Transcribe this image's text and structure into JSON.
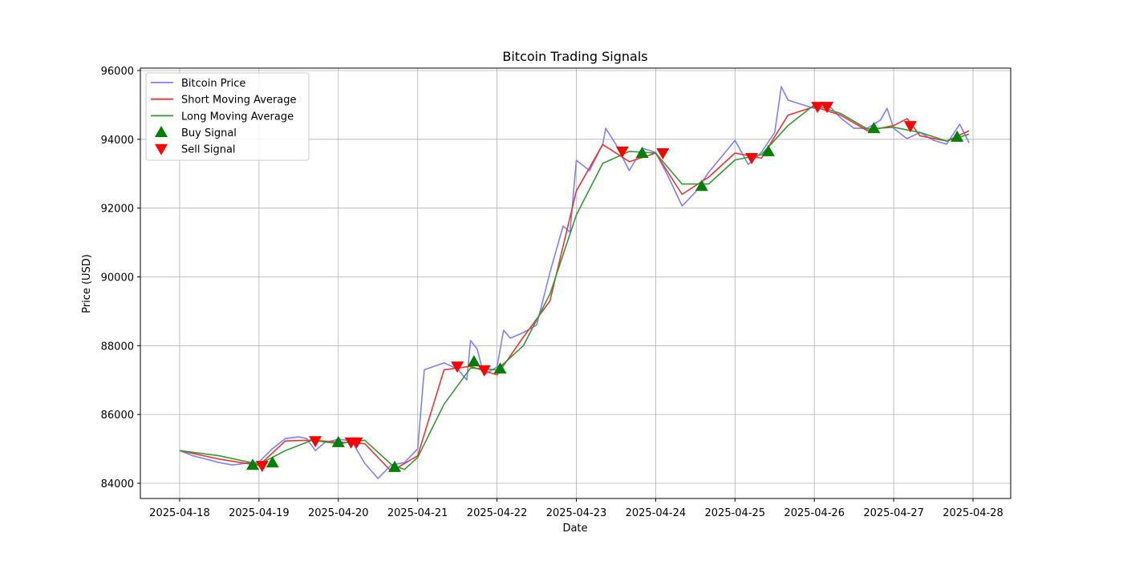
{
  "chart_data": {
    "type": "line",
    "title": "Bitcoin Trading Signals",
    "xlabel": "Date",
    "ylabel": "Price (USD)",
    "x_unit": "days since 2025-04-18",
    "xlim": [
      -0.495,
      10.475
    ],
    "ylim": [
      83557,
      96070
    ],
    "grid": true,
    "legend_position": "top-left",
    "x_ticks": [
      {
        "value": 0,
        "label": "2025-04-18"
      },
      {
        "value": 1,
        "label": "2025-04-19"
      },
      {
        "value": 2,
        "label": "2025-04-20"
      },
      {
        "value": 3,
        "label": "2025-04-21"
      },
      {
        "value": 4,
        "label": "2025-04-22"
      },
      {
        "value": 5,
        "label": "2025-04-23"
      },
      {
        "value": 6,
        "label": "2025-04-24"
      },
      {
        "value": 7,
        "label": "2025-04-25"
      },
      {
        "value": 8,
        "label": "2025-04-26"
      },
      {
        "value": 9,
        "label": "2025-04-27"
      },
      {
        "value": 10,
        "label": "2025-04-28"
      }
    ],
    "y_ticks": [
      {
        "value": 84000,
        "label": "84000"
      },
      {
        "value": 86000,
        "label": "86000"
      },
      {
        "value": 88000,
        "label": "88000"
      },
      {
        "value": 90000,
        "label": "90000"
      },
      {
        "value": 92000,
        "label": "92000"
      },
      {
        "value": 94000,
        "label": "94000"
      },
      {
        "value": 96000,
        "label": "96000"
      }
    ],
    "series": [
      {
        "name": "Bitcoin Price",
        "color": "#7f7fff",
        "points": [
          [
            0,
            84950
          ],
          [
            0.167,
            84800
          ],
          [
            0.333,
            84700
          ],
          [
            0.5,
            84600
          ],
          [
            0.667,
            84530
          ],
          [
            0.833,
            84580
          ],
          [
            1.0,
            84620
          ],
          [
            1.167,
            85000
          ],
          [
            1.333,
            85300
          ],
          [
            1.5,
            85350
          ],
          [
            1.6,
            85300
          ],
          [
            1.71,
            84950
          ],
          [
            1.833,
            85190
          ],
          [
            2.0,
            85280
          ],
          [
            2.167,
            85230
          ],
          [
            2.333,
            84580
          ],
          [
            2.5,
            84140
          ],
          [
            2.667,
            84530
          ],
          [
            2.833,
            84600
          ],
          [
            3.0,
            85000
          ],
          [
            3.083,
            87300
          ],
          [
            3.333,
            87500
          ],
          [
            3.5,
            87330
          ],
          [
            3.62,
            87000
          ],
          [
            3.667,
            88150
          ],
          [
            3.75,
            87900
          ],
          [
            3.833,
            87150
          ],
          [
            4.0,
            87380
          ],
          [
            4.083,
            88450
          ],
          [
            4.167,
            88220
          ],
          [
            4.333,
            88380
          ],
          [
            4.5,
            88600
          ],
          [
            4.667,
            90130
          ],
          [
            4.833,
            91480
          ],
          [
            4.92,
            91300
          ],
          [
            5.0,
            93390
          ],
          [
            5.167,
            93090
          ],
          [
            5.333,
            93860
          ],
          [
            5.37,
            94320
          ],
          [
            5.5,
            93850
          ],
          [
            5.667,
            93090
          ],
          [
            5.833,
            93740
          ],
          [
            6.0,
            93620
          ],
          [
            6.167,
            92880
          ],
          [
            6.333,
            92060
          ],
          [
            6.5,
            92460
          ],
          [
            6.667,
            93040
          ],
          [
            6.833,
            93500
          ],
          [
            7.0,
            93970
          ],
          [
            7.167,
            93270
          ],
          [
            7.333,
            93620
          ],
          [
            7.5,
            94200
          ],
          [
            7.583,
            95530
          ],
          [
            7.667,
            95140
          ],
          [
            7.833,
            95020
          ],
          [
            8.0,
            94900
          ],
          [
            8.167,
            95020
          ],
          [
            8.333,
            94620
          ],
          [
            8.5,
            94320
          ],
          [
            8.667,
            94320
          ],
          [
            8.833,
            94560
          ],
          [
            8.917,
            94900
          ],
          [
            9.0,
            94320
          ],
          [
            9.167,
            94020
          ],
          [
            9.333,
            94200
          ],
          [
            9.5,
            93970
          ],
          [
            9.667,
            93860
          ],
          [
            9.833,
            94440
          ],
          [
            9.95,
            93900
          ]
        ]
      },
      {
        "name": "Short Moving Average",
        "color": "#ee3333",
        "points": [
          [
            0,
            84950
          ],
          [
            0.5,
            84700
          ],
          [
            1.0,
            84520
          ],
          [
            1.333,
            85230
          ],
          [
            1.667,
            85250
          ],
          [
            2.0,
            85200
          ],
          [
            2.333,
            85150
          ],
          [
            2.667,
            84350
          ],
          [
            3.0,
            84800
          ],
          [
            3.333,
            87300
          ],
          [
            3.667,
            87400
          ],
          [
            4.0,
            87150
          ],
          [
            4.333,
            88250
          ],
          [
            4.667,
            89300
          ],
          [
            5.0,
            92500
          ],
          [
            5.333,
            93850
          ],
          [
            5.667,
            93350
          ],
          [
            6.0,
            93600
          ],
          [
            6.333,
            92400
          ],
          [
            6.667,
            92900
          ],
          [
            7.0,
            93600
          ],
          [
            7.333,
            93450
          ],
          [
            7.667,
            94700
          ],
          [
            8.0,
            94950
          ],
          [
            8.333,
            94700
          ],
          [
            8.667,
            94250
          ],
          [
            9.0,
            94400
          ],
          [
            9.17,
            94600
          ],
          [
            9.333,
            94100
          ],
          [
            9.667,
            93950
          ],
          [
            9.95,
            94250
          ]
        ]
      },
      {
        "name": "Long Moving Average",
        "color": "#339933",
        "points": [
          [
            0,
            84950
          ],
          [
            0.5,
            84800
          ],
          [
            1.0,
            84550
          ],
          [
            1.333,
            84950
          ],
          [
            1.667,
            85250
          ],
          [
            2.0,
            85150
          ],
          [
            2.333,
            85250
          ],
          [
            2.667,
            84550
          ],
          [
            2.833,
            84400
          ],
          [
            3.0,
            84750
          ],
          [
            3.333,
            86300
          ],
          [
            3.667,
            87350
          ],
          [
            4.0,
            87300
          ],
          [
            4.333,
            88000
          ],
          [
            4.667,
            89500
          ],
          [
            5.0,
            91800
          ],
          [
            5.333,
            93300
          ],
          [
            5.667,
            93650
          ],
          [
            6.0,
            93600
          ],
          [
            6.333,
            92700
          ],
          [
            6.667,
            92700
          ],
          [
            7.0,
            93400
          ],
          [
            7.333,
            93550
          ],
          [
            7.667,
            94400
          ],
          [
            8.0,
            95000
          ],
          [
            8.333,
            94750
          ],
          [
            8.667,
            94300
          ],
          [
            9.0,
            94350
          ],
          [
            9.333,
            94200
          ],
          [
            9.667,
            93950
          ],
          [
            9.95,
            94150
          ]
        ]
      }
    ],
    "signals": [
      {
        "name": "Buy Signal",
        "color": "#008000",
        "marker": "triangle-up",
        "points": [
          [
            0.92,
            84530
          ],
          [
            1.17,
            84600
          ],
          [
            2.0,
            85190
          ],
          [
            2.71,
            84470
          ],
          [
            3.71,
            87540
          ],
          [
            4.04,
            87330
          ],
          [
            5.83,
            93600
          ],
          [
            6.58,
            92640
          ],
          [
            7.42,
            93650
          ],
          [
            8.75,
            94320
          ],
          [
            9.8,
            94070
          ]
        ]
      },
      {
        "name": "Sell Signal",
        "color": "#ff0000",
        "marker": "triangle-down",
        "points": [
          [
            1.04,
            84510
          ],
          [
            1.71,
            85230
          ],
          [
            2.16,
            85190
          ],
          [
            2.23,
            85190
          ],
          [
            3.5,
            87400
          ],
          [
            3.84,
            87290
          ],
          [
            5.58,
            93650
          ],
          [
            6.09,
            93600
          ],
          [
            7.21,
            93460
          ],
          [
            8.04,
            94950
          ],
          [
            8.16,
            94950
          ],
          [
            9.21,
            94390
          ]
        ]
      }
    ]
  }
}
